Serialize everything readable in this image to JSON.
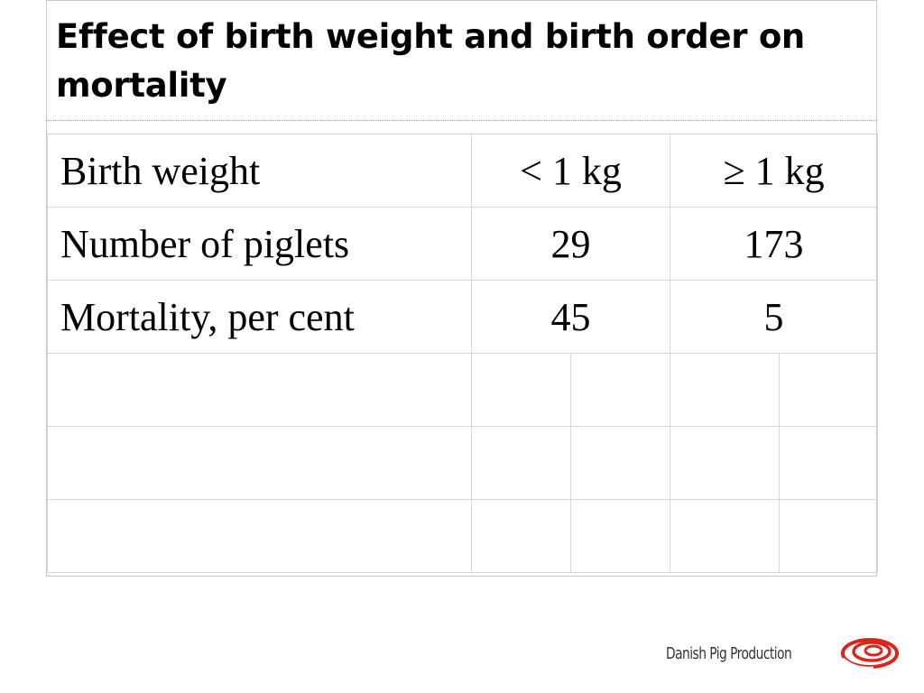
{
  "slide": {
    "title": "Effect of birth weight and birth order on mortality"
  },
  "table": {
    "header": {
      "label": "Birth weight",
      "col1": "< 1 kg",
      "col2": "≥  1 kg"
    },
    "rows": [
      {
        "label": "Number of piglets",
        "col1": "29",
        "col2": "173"
      },
      {
        "label": "Mortality, per cent",
        "col1": "45",
        "col2": "5"
      }
    ]
  },
  "footer": {
    "brand_text": "Danish Pig Production",
    "logo_icon": "danish-pig-production-swirl-icon",
    "logo_color": "#d9261c"
  }
}
